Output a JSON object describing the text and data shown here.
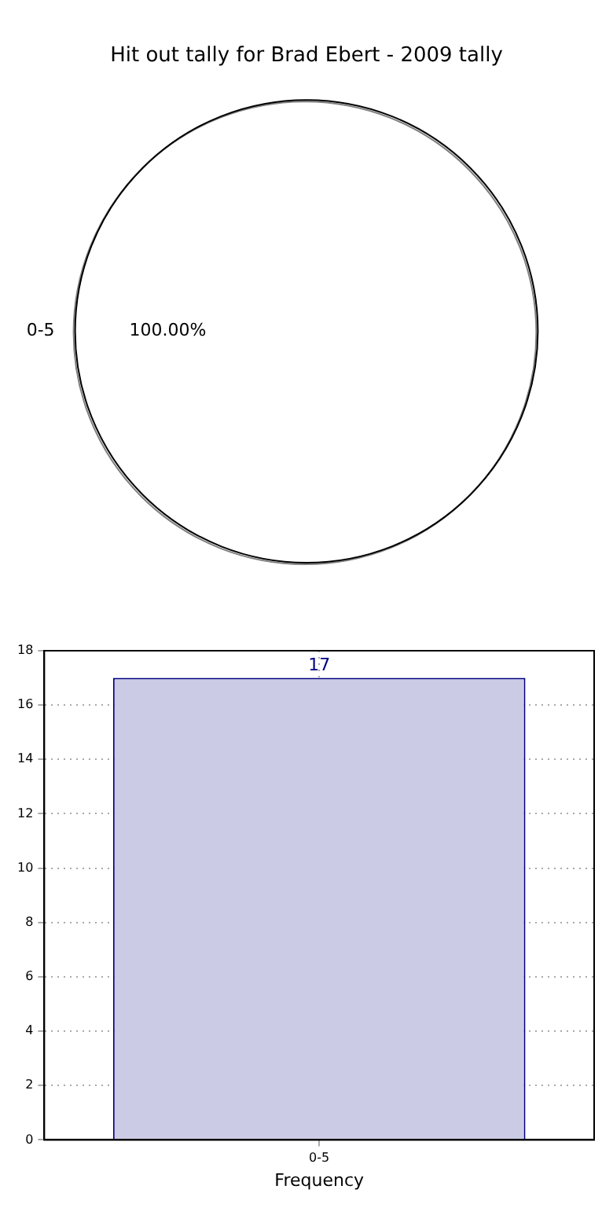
{
  "chart_data": [
    {
      "type": "pie",
      "title": "Hit out tally for Brad Ebert - 2009 tally",
      "categories": [
        "0-5"
      ],
      "values": [
        100
      ],
      "colors": [
        "#ffffff"
      ],
      "value_labels": [
        "100.00%"
      ]
    },
    {
      "type": "bar",
      "xlabel": "Frequency",
      "categories": [
        "0-5"
      ],
      "values": [
        17
      ],
      "color": "#cbcbe5",
      "ylim": [
        0,
        18
      ],
      "yticks": [
        0,
        2,
        4,
        6,
        8,
        10,
        12,
        14,
        16,
        18
      ],
      "grid": true,
      "data_labels": true
    }
  ]
}
